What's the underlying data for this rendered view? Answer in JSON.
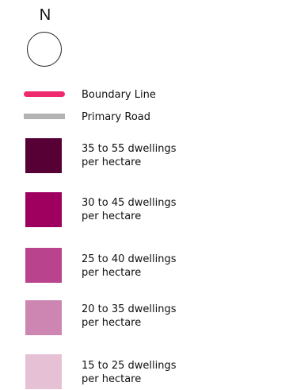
{
  "north_arrow": {
    "letter": "N"
  },
  "legend": {
    "boundary_line": {
      "label": "Boundary Line",
      "color": "#ee2a6f"
    },
    "primary_road": {
      "label": "Primary Road",
      "color": "#b3b3b3"
    },
    "density_classes": [
      {
        "line1": "35 to 55 dwellings",
        "line2": "per hectare",
        "color": "#560035"
      },
      {
        "line1": "30 to 45 dwellings",
        "line2": "per hectare",
        "color": "#9f005f"
      },
      {
        "line1": "25 to 40 dwellings",
        "line2": "per hectare",
        "color": "#b9448d"
      },
      {
        "line1": "20 to 35 dwellings",
        "line2": "per hectare",
        "color": "#cd86b2"
      },
      {
        "line1": "15 to 25 dwellings",
        "line2": "per hectare",
        "color": "#e6c1d6"
      }
    ]
  }
}
